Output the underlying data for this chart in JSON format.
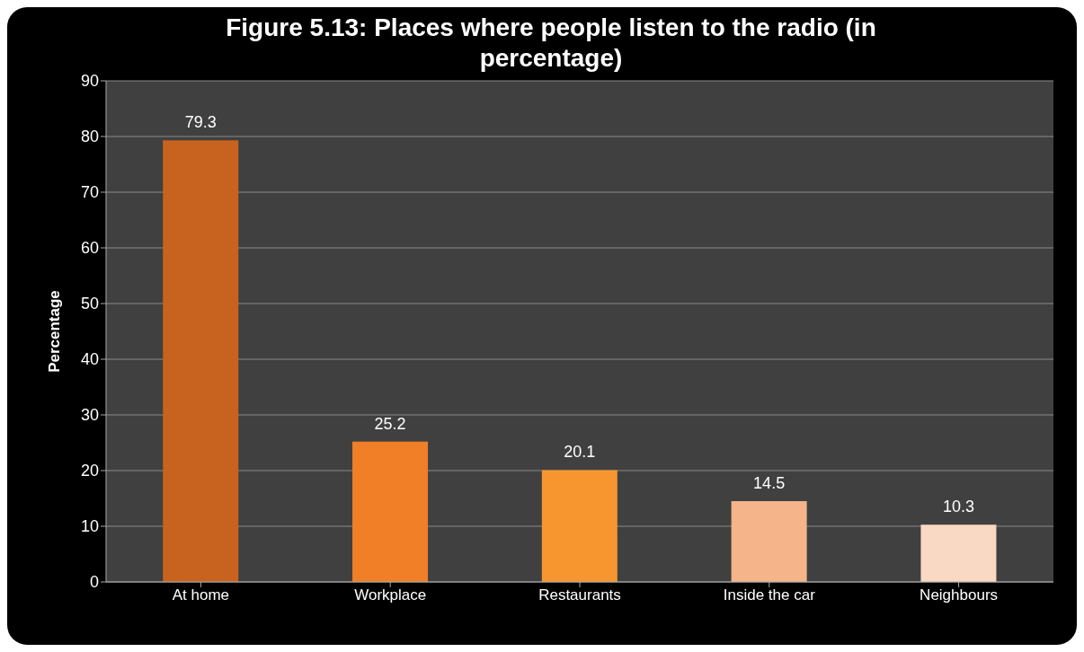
{
  "chart_data": {
    "type": "bar",
    "title": "Figure 5.13: Places where people listen to the radio (in percentage)",
    "ylabel": "Percentage",
    "categories": [
      "At home",
      "Workplace",
      "Restaurants",
      "Inside the car",
      "Neighbours"
    ],
    "values": [
      79.3,
      25.2,
      20.1,
      14.5,
      10.3
    ],
    "colors": [
      "#c8621f",
      "#f07f27",
      "#f7952f",
      "#f5b48a",
      "#f9d8c4"
    ],
    "ylim": [
      0,
      90
    ],
    "yticks": [
      0,
      10,
      20,
      30,
      40,
      50,
      60,
      70,
      80,
      90
    ],
    "grid": "y",
    "data_labels": true,
    "legend": false
  }
}
